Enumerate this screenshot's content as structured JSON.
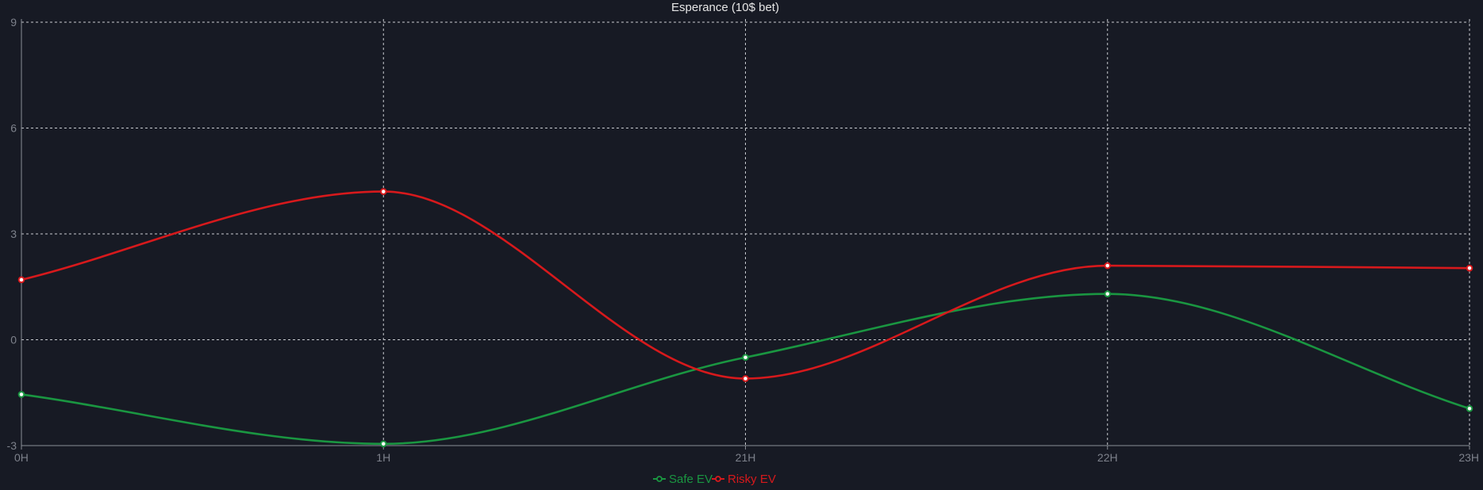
{
  "chart_data": {
    "type": "line",
    "title": "Esperance (10$ bet)",
    "xlabel": "",
    "ylabel": "",
    "categories": [
      "0H",
      "1H",
      "21H",
      "22H",
      "23H"
    ],
    "yticks": [
      "-3",
      "0",
      "3",
      "6",
      "9"
    ],
    "ylim": [
      -3,
      9
    ],
    "grid": true,
    "legend_position": "bottom-center",
    "series": [
      {
        "name": "Safe EV",
        "color": "#1a9641",
        "values": [
          -1.55,
          -2.95,
          -0.5,
          1.3,
          -1.95
        ]
      },
      {
        "name": "Risky EV",
        "color": "#d7191c",
        "values": [
          1.7,
          4.2,
          -1.1,
          2.1,
          2.03
        ]
      }
    ]
  }
}
